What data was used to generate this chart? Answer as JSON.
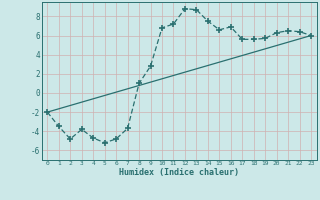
{
  "xlabel": "Humidex (Indice chaleur)",
  "bg_color": "#cce8e8",
  "grid_color": "#b8d8d8",
  "line_color": "#2a7070",
  "xlim": [
    -0.5,
    23.5
  ],
  "ylim": [
    -7,
    9.5
  ],
  "yticks": [
    -6,
    -4,
    -2,
    0,
    2,
    4,
    6,
    8
  ],
  "xticks": [
    0,
    1,
    2,
    3,
    4,
    5,
    6,
    7,
    8,
    9,
    10,
    11,
    12,
    13,
    14,
    15,
    16,
    17,
    18,
    19,
    20,
    21,
    22,
    23
  ],
  "curve_x": [
    0,
    1,
    2,
    3,
    4,
    5,
    6,
    7,
    8,
    9,
    10,
    11,
    12,
    13,
    14,
    15,
    16,
    17,
    18,
    19,
    20,
    21,
    22,
    23
  ],
  "curve_y": [
    -2.0,
    -3.5,
    -4.8,
    -3.8,
    -4.7,
    -5.2,
    -4.8,
    -3.7,
    1.0,
    2.8,
    6.8,
    7.2,
    8.8,
    8.7,
    7.5,
    6.6,
    6.9,
    5.6,
    5.6,
    5.7,
    6.3,
    6.5,
    6.4,
    6.0
  ],
  "line_x": [
    0,
    23
  ],
  "line_y": [
    -2.0,
    6.0
  ]
}
